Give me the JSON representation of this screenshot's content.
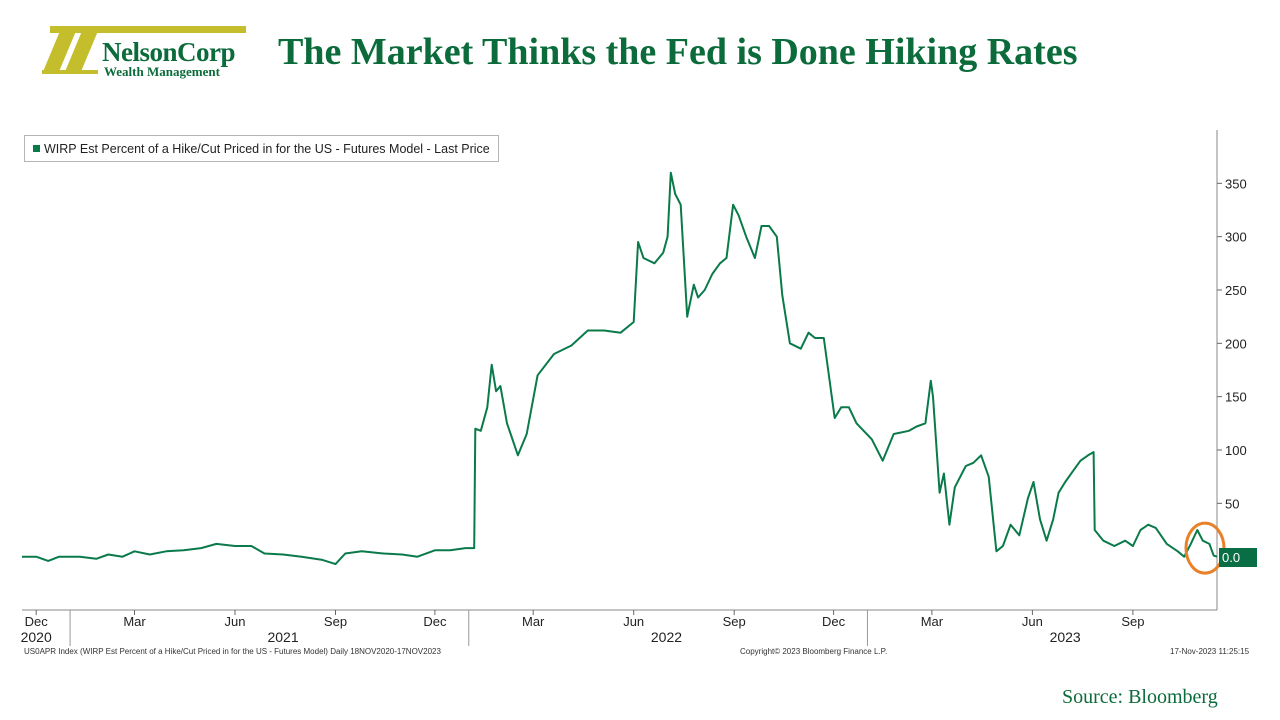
{
  "header": {
    "logo_brand": "NelsonCorp",
    "logo_sub": "Wealth Management",
    "title": "The Market Thinks the Fed is Done Hiking Rates"
  },
  "colors": {
    "brand_green": "#0b6b3a",
    "logo_gold": "#c4be2c",
    "series_green": "#0a7a4a",
    "highlight_orange": "#e8822a"
  },
  "footer": {
    "left": "US0APR Index (WIRP Est Percent of a Hike/Cut Priced in for the US - Futures Model) Daily 18NOV2020-17NOV2023",
    "center": "Copyright© 2023 Bloomberg Finance L.P.",
    "right": "17-Nov-2023 11:25:15",
    "source": "Source: Bloomberg"
  },
  "chart_data": {
    "type": "line",
    "title": "",
    "xlabel": "",
    "ylabel": "",
    "legend": "WIRP Est Percent of a Hike/Cut Priced in for the US - Futures Model - Last Price",
    "legend_position": "top-left",
    "last_value_label": "0.0",
    "yaxis_side": "right",
    "ylim": [
      -50,
      400
    ],
    "yticks": [
      50,
      100,
      150,
      200,
      250,
      300,
      350
    ],
    "grid": false,
    "xlim": [
      "2020-11-18",
      "2023-11-17"
    ],
    "month_ticks": [
      {
        "date": "2020-12-01",
        "label": "Dec"
      },
      {
        "date": "2021-03-01",
        "label": "Mar"
      },
      {
        "date": "2021-06-01",
        "label": "Jun"
      },
      {
        "date": "2021-09-01",
        "label": "Sep"
      },
      {
        "date": "2021-12-01",
        "label": "Dec"
      },
      {
        "date": "2022-03-01",
        "label": "Mar"
      },
      {
        "date": "2022-06-01",
        "label": "Jun"
      },
      {
        "date": "2022-09-01",
        "label": "Sep"
      },
      {
        "date": "2022-12-01",
        "label": "Dec"
      },
      {
        "date": "2023-03-01",
        "label": "Mar"
      },
      {
        "date": "2023-06-01",
        "label": "Jun"
      },
      {
        "date": "2023-09-01",
        "label": "Sep"
      }
    ],
    "year_labels": [
      {
        "date": "2020-12-01",
        "label": "2020"
      },
      {
        "date": "2021-07-15",
        "label": "2021"
      },
      {
        "date": "2022-07-01",
        "label": "2022"
      },
      {
        "date": "2023-07-01",
        "label": "2023"
      }
    ],
    "year_separators": [
      "2021-01-01",
      "2022-01-01",
      "2023-01-01"
    ],
    "series": [
      {
        "name": "WIRP Est Percent of a Hike/Cut Priced in for the US - Futures Model - Last Price",
        "points": [
          [
            "2020-11-18",
            0
          ],
          [
            "2020-12-01",
            0
          ],
          [
            "2020-12-12",
            -4
          ],
          [
            "2020-12-22",
            0
          ],
          [
            "2021-01-10",
            0
          ],
          [
            "2021-01-25",
            -2
          ],
          [
            "2021-02-05",
            2
          ],
          [
            "2021-02-18",
            0
          ],
          [
            "2021-03-01",
            5
          ],
          [
            "2021-03-15",
            2
          ],
          [
            "2021-03-30",
            5
          ],
          [
            "2021-04-15",
            6
          ],
          [
            "2021-05-01",
            8
          ],
          [
            "2021-05-15",
            12
          ],
          [
            "2021-06-01",
            10
          ],
          [
            "2021-06-16",
            10
          ],
          [
            "2021-06-28",
            3
          ],
          [
            "2021-07-15",
            2
          ],
          [
            "2021-08-01",
            0
          ],
          [
            "2021-08-20",
            -3
          ],
          [
            "2021-09-01",
            -7
          ],
          [
            "2021-09-10",
            3
          ],
          [
            "2021-09-25",
            5
          ],
          [
            "2021-10-15",
            3
          ],
          [
            "2021-11-01",
            2
          ],
          [
            "2021-11-15",
            0
          ],
          [
            "2021-12-01",
            6
          ],
          [
            "2021-12-15",
            6
          ],
          [
            "2021-12-29",
            8
          ],
          [
            "2022-01-06",
            8
          ],
          [
            "2022-01-07",
            120
          ],
          [
            "2022-01-12",
            118
          ],
          [
            "2022-01-18",
            140
          ],
          [
            "2022-01-22",
            180
          ],
          [
            "2022-01-26",
            155
          ],
          [
            "2022-01-30",
            160
          ],
          [
            "2022-02-05",
            125
          ],
          [
            "2022-02-15",
            95
          ],
          [
            "2022-02-23",
            115
          ],
          [
            "2022-03-05",
            170
          ],
          [
            "2022-03-20",
            190
          ],
          [
            "2022-04-05",
            198
          ],
          [
            "2022-04-20",
            212
          ],
          [
            "2022-05-05",
            212
          ],
          [
            "2022-05-20",
            210
          ],
          [
            "2022-06-01",
            220
          ],
          [
            "2022-06-05",
            295
          ],
          [
            "2022-06-10",
            280
          ],
          [
            "2022-06-20",
            275
          ],
          [
            "2022-06-28",
            285
          ],
          [
            "2022-07-02",
            300
          ],
          [
            "2022-07-05",
            360
          ],
          [
            "2022-07-09",
            340
          ],
          [
            "2022-07-14",
            330
          ],
          [
            "2022-07-20",
            225
          ],
          [
            "2022-07-26",
            255
          ],
          [
            "2022-07-30",
            243
          ],
          [
            "2022-08-05",
            250
          ],
          [
            "2022-08-12",
            265
          ],
          [
            "2022-08-19",
            275
          ],
          [
            "2022-08-25",
            280
          ],
          [
            "2022-08-31",
            330
          ],
          [
            "2022-09-05",
            320
          ],
          [
            "2022-09-12",
            300
          ],
          [
            "2022-09-20",
            280
          ],
          [
            "2022-09-26",
            310
          ],
          [
            "2022-10-03",
            310
          ],
          [
            "2022-10-10",
            300
          ],
          [
            "2022-10-15",
            245
          ],
          [
            "2022-10-22",
            200
          ],
          [
            "2022-11-01",
            195
          ],
          [
            "2022-11-08",
            210
          ],
          [
            "2022-11-14",
            205
          ],
          [
            "2022-11-22",
            205
          ],
          [
            "2022-12-02",
            130
          ],
          [
            "2022-12-08",
            140
          ],
          [
            "2022-12-15",
            140
          ],
          [
            "2022-12-22",
            125
          ],
          [
            "2023-01-05",
            110
          ],
          [
            "2023-01-15",
            90
          ],
          [
            "2023-01-25",
            115
          ],
          [
            "2023-02-08",
            118
          ],
          [
            "2023-02-15",
            122
          ],
          [
            "2023-02-23",
            125
          ],
          [
            "2023-02-28",
            165
          ],
          [
            "2023-03-02",
            150
          ],
          [
            "2023-03-08",
            60
          ],
          [
            "2023-03-12",
            78
          ],
          [
            "2023-03-17",
            30
          ],
          [
            "2023-03-22",
            65
          ],
          [
            "2023-04-01",
            85
          ],
          [
            "2023-04-08",
            88
          ],
          [
            "2023-04-15",
            95
          ],
          [
            "2023-04-22",
            75
          ],
          [
            "2023-04-29",
            5
          ],
          [
            "2023-05-05",
            10
          ],
          [
            "2023-05-12",
            30
          ],
          [
            "2023-05-20",
            20
          ],
          [
            "2023-05-28",
            55
          ],
          [
            "2023-06-02",
            70
          ],
          [
            "2023-06-08",
            35
          ],
          [
            "2023-06-14",
            15
          ],
          [
            "2023-06-20",
            35
          ],
          [
            "2023-06-25",
            60
          ],
          [
            "2023-07-01",
            70
          ],
          [
            "2023-07-08",
            80
          ],
          [
            "2023-07-15",
            90
          ],
          [
            "2023-07-22",
            95
          ],
          [
            "2023-07-27",
            98
          ],
          [
            "2023-07-28",
            25
          ],
          [
            "2023-08-05",
            15
          ],
          [
            "2023-08-15",
            10
          ],
          [
            "2023-08-25",
            15
          ],
          [
            "2023-09-01",
            10
          ],
          [
            "2023-09-08",
            25
          ],
          [
            "2023-09-15",
            30
          ],
          [
            "2023-09-22",
            27
          ],
          [
            "2023-10-02",
            12
          ],
          [
            "2023-10-12",
            5
          ],
          [
            "2023-10-18",
            0
          ],
          [
            "2023-10-24",
            12
          ],
          [
            "2023-10-30",
            25
          ],
          [
            "2023-11-04",
            15
          ],
          [
            "2023-11-10",
            12
          ],
          [
            "2023-11-14",
            1
          ],
          [
            "2023-11-17",
            0
          ]
        ]
      }
    ],
    "annotation": {
      "type": "circle",
      "date": "2023-11-06",
      "value": 8,
      "color": "#e8822a"
    }
  }
}
